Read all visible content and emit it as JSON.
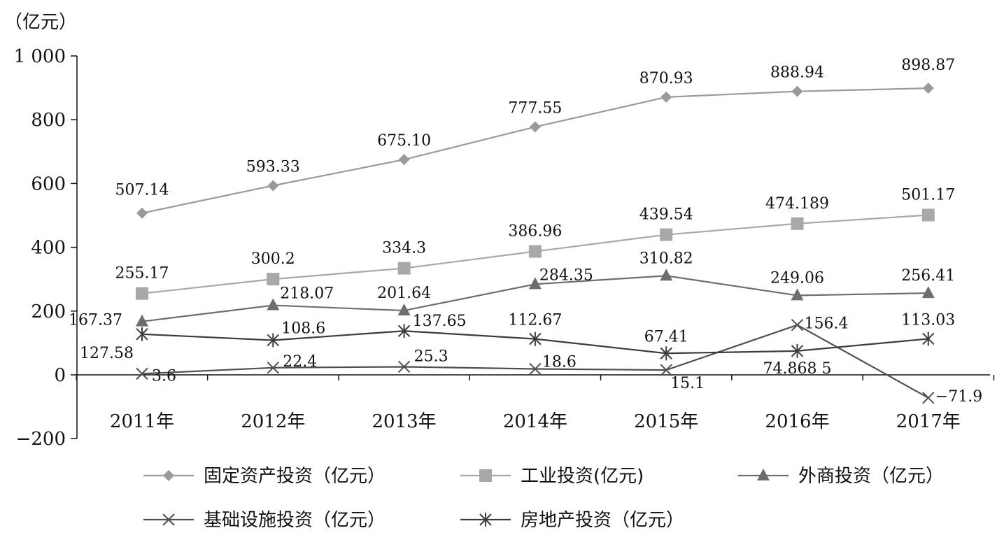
{
  "chart_data": {
    "type": "line",
    "ylabel": "（亿元）",
    "categories": [
      "2011年",
      "2012年",
      "2013年",
      "2014年",
      "2015年",
      "2016年",
      "2017年"
    ],
    "ylim": [
      -200,
      1000
    ],
    "yticks": [
      -200,
      0,
      200,
      400,
      600,
      800,
      1000
    ],
    "ytick_labels": [
      "−200",
      "0",
      "200",
      "400",
      "600",
      "800",
      "1 000"
    ],
    "grid": false,
    "legend_position": "bottom",
    "series": [
      {
        "name": "固定资产投资（亿元）",
        "values": [
          507.14,
          593.33,
          675.1,
          777.55,
          870.93,
          888.94,
          898.87
        ],
        "labels": [
          "507.14",
          "593.33",
          "675.10",
          "777.55",
          "870.93",
          "888.94",
          "898.87"
        ],
        "color": "#9a9a9a",
        "marker": "diamond"
      },
      {
        "name": "工业投资(亿元)",
        "values": [
          255.17,
          300.2,
          334.3,
          386.96,
          439.54,
          474.189,
          501.17
        ],
        "labels": [
          "255.17",
          "300.2",
          "334.3",
          "386.96",
          "439.54",
          "474.189",
          "501.17"
        ],
        "color": "#a8a8a8",
        "marker": "square"
      },
      {
        "name": "外商投资（亿元）",
        "values": [
          167.37,
          218.07,
          201.64,
          284.35,
          310.82,
          249.06,
          256.41
        ],
        "labels": [
          "167.37",
          "218.07",
          "201.64",
          "284.35",
          "310.82",
          "249.06",
          "256.41"
        ],
        "color": "#6e6e6e",
        "marker": "triangle"
      },
      {
        "name": "基础设施投资（亿元）",
        "values": [
          3.6,
          22.4,
          25.3,
          18.6,
          15.1,
          156.4,
          -71.9
        ],
        "labels": [
          "3.6",
          "22.4",
          "25.3",
          "18.6",
          "15.1",
          "156.4",
          "−71.9"
        ],
        "color": "#505050",
        "marker": "x"
      },
      {
        "name": "房地产投资（亿元）",
        "values": [
          127.58,
          108.6,
          137.65,
          112.67,
          67.41,
          74.8685,
          113.03
        ],
        "labels": [
          "127.58",
          "108.6",
          "137.65",
          "112.67",
          "67.41",
          "74.868 5",
          "113.03"
        ],
        "color": "#3c3c3c",
        "marker": "star"
      }
    ]
  }
}
